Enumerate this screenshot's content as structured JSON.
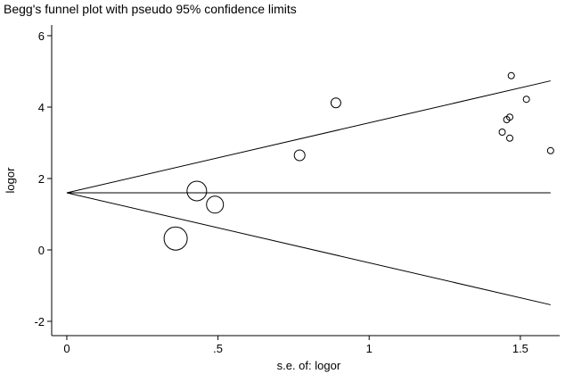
{
  "chart_data": {
    "type": "scatter",
    "title": "Begg's funnel plot with pseudo 95% confidence limits",
    "xlabel": "s.e. of: logor",
    "ylabel": "logor",
    "xlim": [
      -0.05,
      1.63
    ],
    "ylim": [
      -2.4,
      6.3
    ],
    "x_ticks": [
      {
        "value": 0,
        "label": "0"
      },
      {
        "value": 0.5,
        "label": ".5"
      },
      {
        "value": 1,
        "label": "1"
      },
      {
        "value": 1.5,
        "label": "1.5"
      }
    ],
    "y_ticks": [
      {
        "value": -2,
        "label": "-2"
      },
      {
        "value": 0,
        "label": "0"
      },
      {
        "value": 2,
        "label": "2"
      },
      {
        "value": 4,
        "label": "4"
      },
      {
        "value": 6,
        "label": "6"
      }
    ],
    "grid": false,
    "pooled_estimate": 1.6,
    "x_range_lines": [
      0,
      1.6
    ],
    "limit_slope": 1.96,
    "points": [
      {
        "x": 0.36,
        "y": 0.32,
        "size": 13
      },
      {
        "x": 0.43,
        "y": 1.65,
        "size": 11
      },
      {
        "x": 0.49,
        "y": 1.27,
        "size": 9.5
      },
      {
        "x": 0.77,
        "y": 2.65,
        "size": 6
      },
      {
        "x": 0.89,
        "y": 4.12,
        "size": 5.5
      },
      {
        "x": 1.44,
        "y": 3.3,
        "size": 3.5
      },
      {
        "x": 1.455,
        "y": 3.65,
        "size": 3.5
      },
      {
        "x": 1.465,
        "y": 3.72,
        "size": 3.5
      },
      {
        "x": 1.465,
        "y": 3.13,
        "size": 3.5
      },
      {
        "x": 1.47,
        "y": 4.88,
        "size": 3.5
      },
      {
        "x": 1.52,
        "y": 4.22,
        "size": 3.5
      },
      {
        "x": 1.6,
        "y": 2.78,
        "size": 3.5
      }
    ]
  }
}
